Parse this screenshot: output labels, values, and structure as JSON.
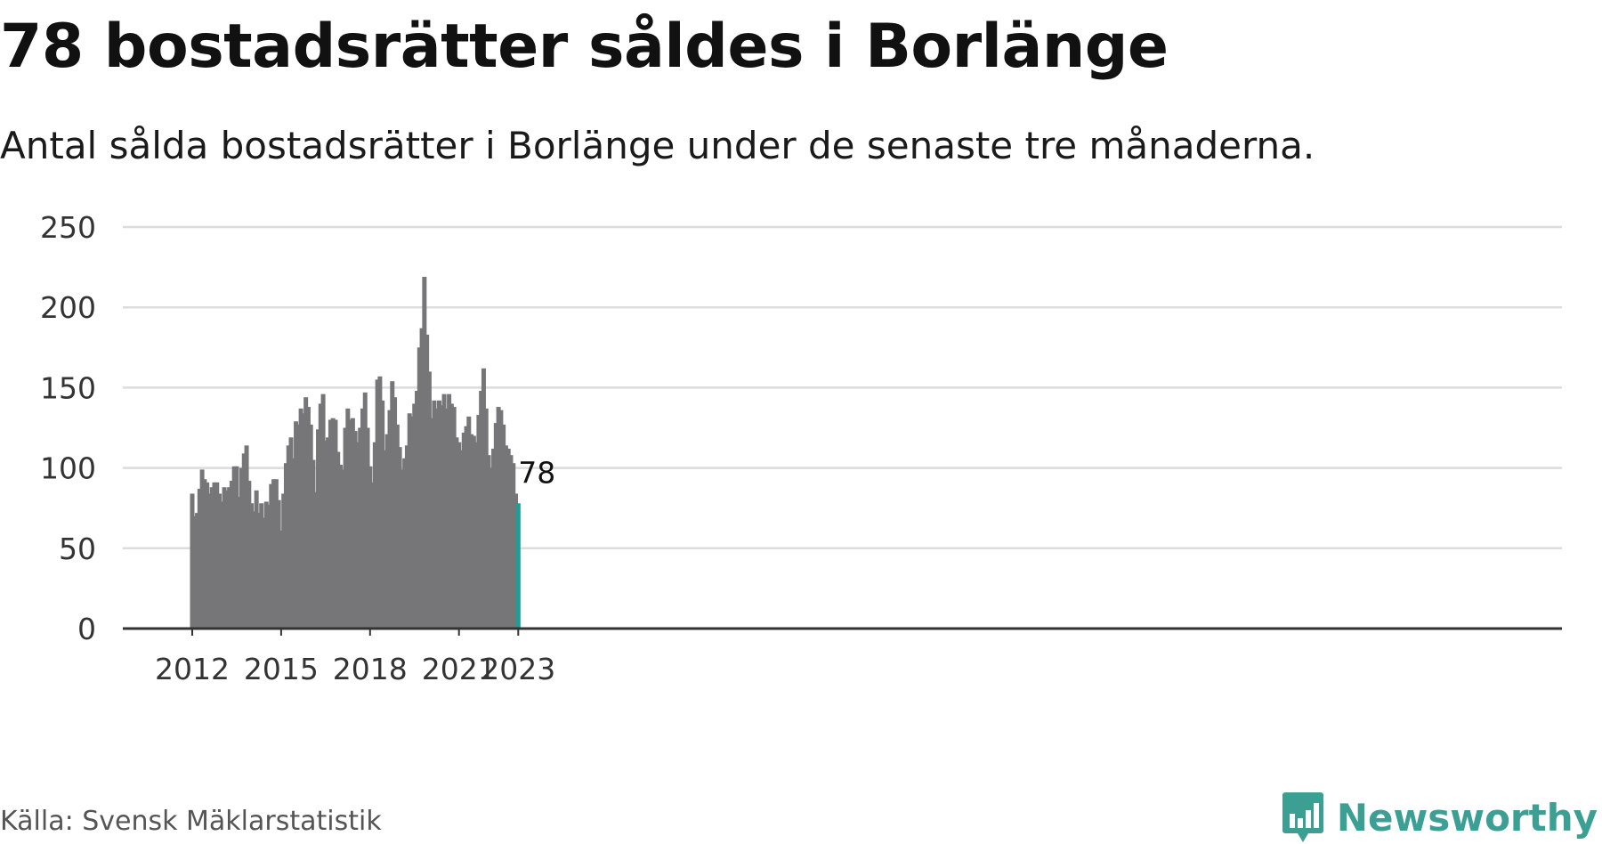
{
  "header": {
    "title": "78 bostadsrätter såldes i Borlänge",
    "subtitle": "Antal sålda bostadsrätter i Borlänge under de senaste tre månaderna."
  },
  "footer": {
    "source": "Källa: Svensk Mäklarstatistik",
    "brand": "Newsworthy",
    "brand_icon": "newsworthy-logo-icon"
  },
  "colors": {
    "bar": "#767678",
    "highlight": "#1c9d95",
    "grid": "#dcdcdc",
    "axis": "#333333",
    "brand": "#3b9f93"
  },
  "chart_data": {
    "type": "bar",
    "title": "78 bostadsrätter såldes i Borlänge",
    "subtitle": "Antal sålda bostadsrätter i Borlänge under de senaste tre månaderna.",
    "xlabel": "",
    "ylabel": "",
    "x_start": "2012-01",
    "x_end": "2023-01",
    "frequency": "monthly",
    "x_ticks": [
      "2012",
      "2015",
      "2018",
      "2021",
      "2023"
    ],
    "y_ticks": [
      0,
      50,
      100,
      150,
      200,
      250
    ],
    "ylim": [
      0,
      250
    ],
    "grid": true,
    "highlight": "last",
    "last_value_label": "78",
    "values": [
      84,
      70,
      72,
      87,
      99,
      93,
      91,
      84,
      88,
      91,
      91,
      84,
      79,
      88,
      86,
      88,
      92,
      101,
      101,
      82,
      100,
      109,
      114,
      92,
      78,
      73,
      86,
      72,
      78,
      69,
      79,
      77,
      90,
      93,
      93,
      80,
      61,
      84,
      103,
      114,
      119,
      106,
      129,
      127,
      137,
      134,
      144,
      138,
      127,
      105,
      85,
      124,
      140,
      146,
      117,
      119,
      130,
      131,
      130,
      110,
      102,
      99,
      125,
      137,
      130,
      131,
      123,
      116,
      125,
      137,
      147,
      125,
      101,
      91,
      116,
      155,
      157,
      142,
      111,
      121,
      136,
      154,
      144,
      127,
      113,
      99,
      106,
      114,
      134,
      132,
      140,
      148,
      175,
      187,
      219,
      183,
      160,
      131,
      142,
      137,
      142,
      139,
      146,
      137,
      146,
      140,
      138,
      119,
      116,
      111,
      122,
      126,
      132,
      121,
      120,
      116,
      133,
      148,
      162,
      137,
      108,
      100,
      112,
      128,
      138,
      136,
      127,
      114,
      112,
      108,
      103,
      84,
      78
    ]
  }
}
